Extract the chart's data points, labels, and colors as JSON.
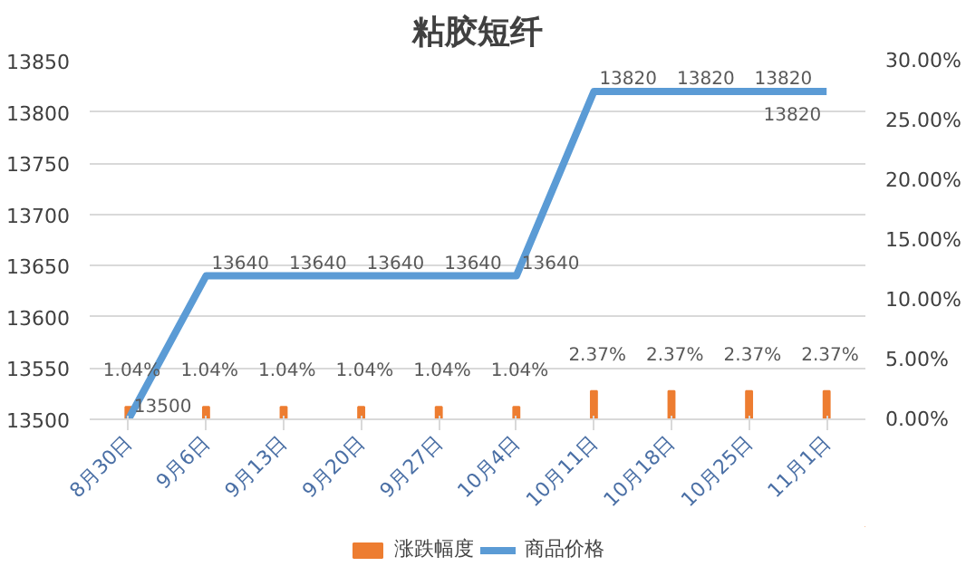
{
  "chart_data": {
    "type": "bar",
    "title": "粘胶短纤",
    "categories": [
      "8月30日",
      "9月6日",
      "9月13日",
      "9月20日",
      "9月27日",
      "10月4日",
      "10月11日",
      "10月18日",
      "10月25日",
      "11月1日"
    ],
    "series": [
      {
        "name": "涨跌幅度",
        "axis": "y2",
        "color": "#ed7d31",
        "values": [
          1.04,
          1.04,
          1.04,
          1.04,
          1.04,
          1.04,
          2.37,
          2.37,
          2.37,
          2.37
        ],
        "value_labels": [
          "1.04%",
          "1.04%",
          "1.04%",
          "1.04%",
          "1.04%",
          "1.04%",
          "2.37%",
          "2.37%",
          "2.37%",
          "2.37%"
        ]
      },
      {
        "name": "商品价格",
        "type": "line",
        "color": "#5b9bd5",
        "values": [
          13500,
          13640,
          13640,
          13640,
          13640,
          13640,
          13820,
          13820,
          13820,
          13820
        ]
      }
    ],
    "data_labels": true,
    "ylim": [
      13500,
      13850
    ],
    "yticks": [
      13500,
      13550,
      13600,
      13650,
      13700,
      13750,
      13800,
      13850
    ],
    "y2lim": [
      0,
      30
    ],
    "y2ticks": [
      {
        "value": 0,
        "label": "0.00%"
      },
      {
        "value": 5,
        "label": "5.00%"
      },
      {
        "value": 10,
        "label": "10.00%"
      },
      {
        "value": 15,
        "label": "15.00%"
      },
      {
        "value": 20,
        "label": "20.00%"
      },
      {
        "value": 25,
        "label": "25.00%"
      },
      {
        "value": 30,
        "label": "30.00%"
      }
    ],
    "grid": "y",
    "legend": "bottom"
  }
}
